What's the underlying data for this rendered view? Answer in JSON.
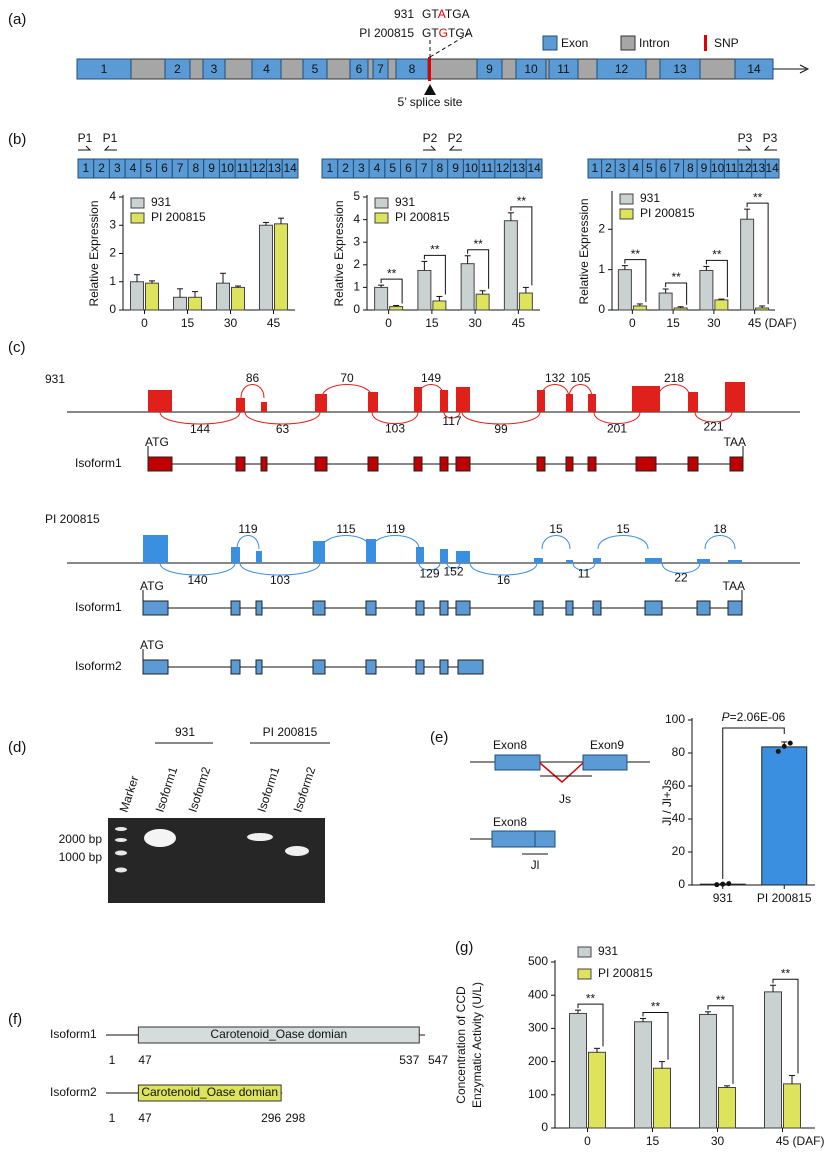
{
  "panel_labels": [
    "(a)",
    "(b)",
    "(c)",
    "(d)",
    "(e)",
    "(f)",
    "(g)"
  ],
  "gene_structure": {
    "exons": [
      "1",
      "2",
      "3",
      "4",
      "5",
      "6",
      "7",
      "8",
      "9",
      "10",
      "11",
      "12",
      "13",
      "14"
    ],
    "legend": [
      "Exon",
      "Intron",
      "SNP"
    ],
    "snp": {
      "lines": [
        {
          "name": "931",
          "sequence": [
            "GT",
            "A",
            "TGA"
          ]
        },
        {
          "name": "PI 200815",
          "sequence": [
            "GT",
            "G",
            "TGA"
          ]
        }
      ],
      "site": "5’ splice site"
    }
  },
  "primers": [
    [
      "P1",
      "P1"
    ],
    [
      "P2",
      "P2"
    ],
    [
      "P3",
      "P3"
    ]
  ],
  "sashimi": [
    {
      "name": "931",
      "above": [
        86,
        70,
        149,
        132,
        105,
        218
      ],
      "below": [
        144,
        63,
        103,
        117,
        99,
        201,
        221
      ],
      "isoforms": [
        "Isoform1"
      ],
      "start": "ATG",
      "stop": "TAA",
      "color": "#e0201b"
    },
    {
      "name": "PI 200815",
      "above": [
        119,
        115,
        119,
        15,
        15,
        18
      ],
      "below": [
        140,
        103,
        129,
        152,
        16,
        11,
        22
      ],
      "isoforms": [
        "Isoform1",
        "Isoform2"
      ],
      "start": "ATG",
      "stop": "TAA",
      "color": "#3a8fe0"
    }
  ],
  "gel": {
    "marker": "Marker",
    "groups": [
      {
        "name": "931",
        "lanes": [
          "Isoform1",
          "Isoform2"
        ]
      },
      {
        "name": "PI 200815",
        "lanes": [
          "Isoform1",
          "Isoform2"
        ]
      }
    ],
    "sizes": [
      "2000 bp",
      "1000 bp"
    ]
  },
  "splice_diagram": {
    "exon_a": "Exon8",
    "exon_b": "Exon9",
    "js": "Js",
    "exon_c": "Exon8",
    "jl": "Jl"
  },
  "protein": [
    {
      "name": "Isoform1",
      "domain": "Carotenoid_Oase domian",
      "positions": [
        1,
        47,
        537,
        547
      ],
      "color": "#d4dcdc"
    },
    {
      "name": "Isoform2",
      "domain": "Carotenoid_Oase domian",
      "positions": [
        1,
        47,
        296,
        298
      ],
      "color": "#dde35a"
    }
  ],
  "chart_data": [
    {
      "type": "bar",
      "ylabel": [
        "Relative Expression"
      ],
      "categories": [
        "0",
        "15",
        "30",
        "45"
      ],
      "series": [
        {
          "name": "931",
          "color": "#c9d1d1",
          "values": [
            1.0,
            0.45,
            0.95,
            3.0
          ],
          "errors": [
            0.25,
            0.3,
            0.35,
            0.1
          ]
        },
        {
          "name": "PI 200815",
          "color": "#dde35a",
          "values": [
            0.95,
            0.45,
            0.8,
            3.05
          ],
          "errors": [
            0.08,
            0.2,
            0.05,
            0.2
          ]
        }
      ],
      "ylim": [
        0,
        4
      ],
      "yticks": [
        0,
        1,
        2,
        3,
        4
      ],
      "legend": "top-left"
    },
    {
      "type": "bar",
      "ylabel": [
        "Relative Expression"
      ],
      "categories": [
        "0",
        "15",
        "30",
        "45"
      ],
      "series": [
        {
          "name": "931",
          "color": "#c9d1d1",
          "values": [
            1.0,
            1.75,
            2.05,
            3.95
          ],
          "errors": [
            0.1,
            0.4,
            0.35,
            0.35
          ]
        },
        {
          "name": "PI 200815",
          "color": "#dde35a",
          "values": [
            0.15,
            0.4,
            0.7,
            0.75
          ],
          "errors": [
            0.05,
            0.2,
            0.15,
            0.25
          ]
        }
      ],
      "annotations": [
        "**",
        "**",
        "**",
        "**"
      ],
      "ylim": [
        0,
        5
      ],
      "yticks": [
        0,
        1,
        2,
        3,
        4,
        5
      ],
      "legend": "top-left"
    },
    {
      "type": "bar",
      "ylabel": [
        "Relative Expression"
      ],
      "categories": [
        "0",
        "15",
        "30",
        "45"
      ],
      "x_unit": "(DAF)",
      "series": [
        {
          "name": "931",
          "color": "#c9d1d1",
          "values": [
            1.0,
            0.42,
            0.98,
            2.25
          ],
          "errors": [
            0.1,
            0.1,
            0.1,
            0.25
          ]
        },
        {
          "name": "PI 200815",
          "color": "#dde35a",
          "values": [
            0.1,
            0.05,
            0.25,
            0.05
          ],
          "errors": [
            0.05,
            0.03,
            0.02,
            0.05
          ]
        }
      ],
      "annotations": [
        "**",
        "**",
        "**",
        "**"
      ],
      "ylim": [
        0,
        2.9
      ],
      "yticks": [
        0,
        1,
        2
      ],
      "legend": "top-left"
    },
    {
      "type": "bar",
      "ylabel": [
        "Jl / Jl+Js"
      ],
      "categories": [
        "931",
        "PI 200815"
      ],
      "color": "#3a8fe0",
      "values": [
        0.5,
        83.7
      ],
      "errors": [
        0.3,
        3
      ],
      "points": [
        [
          0.2,
          0.5,
          0.8
        ],
        [
          81,
          84,
          86
        ]
      ],
      "pvalue": [
        "P",
        "=2.06E-06"
      ],
      "ylim": [
        0,
        100
      ],
      "yticks": [
        0,
        20,
        40,
        60,
        80,
        100
      ]
    },
    {
      "type": "bar",
      "ylabel": [
        "Concentration of CCD",
        "Enzymatic Activity (U/L)"
      ],
      "categories": [
        "0",
        "15",
        "30",
        "45"
      ],
      "x_unit": "(DAF)",
      "series": [
        {
          "name": "931",
          "color": "#c9d1d1",
          "values": [
            345,
            320,
            342,
            410
          ],
          "errors": [
            10,
            10,
            8,
            20
          ]
        },
        {
          "name": "PI 200815",
          "color": "#dde35a",
          "values": [
            228,
            180,
            122,
            133
          ],
          "errors": [
            12,
            20,
            5,
            25
          ]
        }
      ],
      "annotations": [
        "**",
        "**",
        "**",
        "**"
      ],
      "ylim": [
        0,
        500
      ],
      "yticks": [
        0,
        100,
        200,
        300,
        400,
        500
      ],
      "legend": "top-left-outside"
    }
  ]
}
